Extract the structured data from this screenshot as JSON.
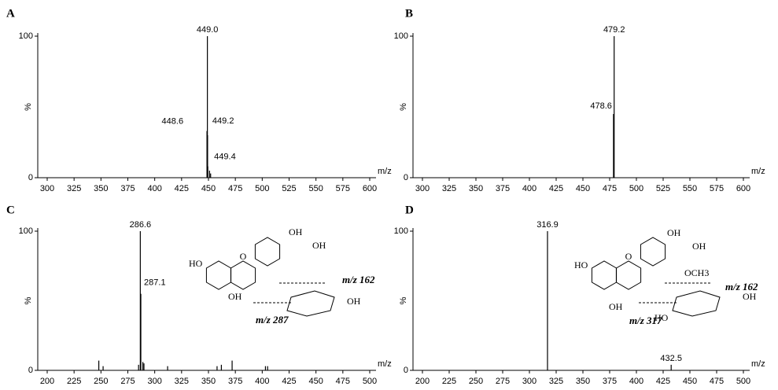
{
  "chart_data": [
    {
      "type": "bar",
      "panel_label": "A",
      "xlabel": "m/z",
      "ylabel": "%",
      "x": [
        448.6,
        449.0,
        449.2,
        449.4,
        451,
        452
      ],
      "values": [
        33,
        100,
        30,
        8,
        5,
        3
      ],
      "x_labels": [
        "448.6",
        "449.0",
        "449.2",
        "449.4",
        null,
        null
      ],
      "xlim": [
        300,
        600
      ],
      "xticks": [
        300,
        325,
        350,
        375,
        400,
        425,
        450,
        475,
        500,
        525,
        550,
        575,
        600
      ],
      "ylim": [
        0,
        100
      ],
      "yticks": [
        0,
        100
      ],
      "color": "#000000"
    },
    {
      "type": "bar",
      "panel_label": "B",
      "xlabel": "m/z",
      "ylabel": "%",
      "x": [
        478.6,
        479.2
      ],
      "values": [
        45,
        100
      ],
      "x_labels": [
        "478.6",
        "479.2"
      ],
      "xlim": [
        300,
        600
      ],
      "xticks": [
        300,
        325,
        350,
        375,
        400,
        425,
        450,
        475,
        500,
        525,
        550,
        575,
        600
      ],
      "ylim": [
        0,
        100
      ],
      "yticks": [
        0,
        100
      ],
      "color": "#000000"
    },
    {
      "type": "bar",
      "panel_label": "C",
      "xlabel": "m/z",
      "ylabel": "%",
      "x": [
        248,
        252,
        285,
        286.6,
        287.1,
        289,
        290,
        312,
        358,
        362,
        372,
        403,
        405
      ],
      "values": [
        7,
        3,
        4,
        100,
        55,
        6,
        5,
        3,
        3,
        4,
        7,
        3,
        3
      ],
      "x_labels": [
        null,
        null,
        null,
        "286.6",
        "287.1",
        null,
        null,
        null,
        null,
        null,
        null,
        null,
        null
      ],
      "xlim": [
        200,
        500
      ],
      "xticks": [
        200,
        225,
        250,
        275,
        300,
        325,
        350,
        375,
        400,
        425,
        450,
        475,
        500
      ],
      "ylim": [
        0,
        100
      ],
      "yticks": [
        0,
        100
      ],
      "color": "#000000",
      "structure_labels": [
        "HO",
        "OH",
        "OH",
        "OH",
        "OH",
        "m/z 162",
        "m/z 287"
      ]
    },
    {
      "type": "bar",
      "panel_label": "D",
      "xlabel": "m/z",
      "ylabel": "%",
      "x": [
        316.9,
        432.5
      ],
      "values": [
        100,
        4
      ],
      "x_labels": [
        "316.9",
        "432.5"
      ],
      "xlim": [
        200,
        500
      ],
      "xticks": [
        200,
        225,
        250,
        275,
        300,
        325,
        350,
        375,
        400,
        425,
        450,
        475,
        500
      ],
      "ylim": [
        0,
        100
      ],
      "yticks": [
        0,
        100
      ],
      "color": "#000000",
      "structure_labels": [
        "HO",
        "OH",
        "OH",
        "OH",
        "OCH3",
        "OH",
        "HO",
        "m/z 162",
        "m/z 317"
      ]
    }
  ]
}
